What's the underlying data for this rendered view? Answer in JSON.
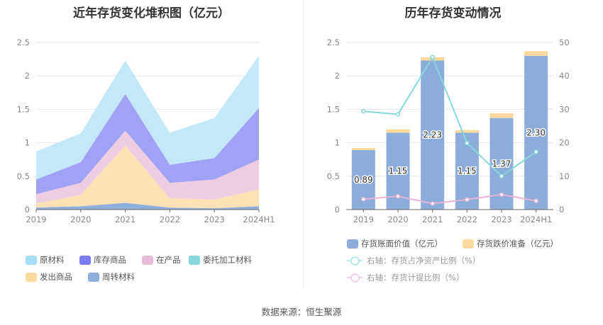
{
  "chart_data": [
    {
      "type": "area",
      "stacked": true,
      "title": "近年存货变化堆积图（亿元）",
      "categories": [
        "2019",
        "2020",
        "2021",
        "2022",
        "2023",
        "2024H1"
      ],
      "ylim": [
        0,
        2.5
      ],
      "yticks": [
        "0",
        "0.5",
        "1",
        "1.5",
        "2",
        "2.5"
      ],
      "grid": true,
      "legend_position": "bottom",
      "series": [
        {
          "name": "周转材料",
          "color": "#8eaedc",
          "values": [
            0.03,
            0.05,
            0.1,
            0.03,
            0.02,
            0.05
          ]
        },
        {
          "name": "发出商品",
          "color": "#fde1b4",
          "values": [
            0.06,
            0.17,
            0.86,
            0.14,
            0.13,
            0.25
          ]
        },
        {
          "name": "委托加工材料",
          "color": "#87d7dc",
          "values": [
            0,
            0,
            0,
            0,
            0,
            0
          ]
        },
        {
          "name": "在产品",
          "color": "#eecde3",
          "values": [
            0.14,
            0.18,
            0.22,
            0.23,
            0.3,
            0.45
          ]
        },
        {
          "name": "库存商品",
          "color": "#a0a2f6",
          "values": [
            0.22,
            0.31,
            0.55,
            0.27,
            0.32,
            0.77
          ]
        },
        {
          "name": "原材料",
          "color": "#c3e8fa",
          "values": [
            0.42,
            0.43,
            0.5,
            0.48,
            0.6,
            0.78
          ]
        }
      ],
      "legend": [
        {
          "name": "原材料",
          "color": "#a6def8"
        },
        {
          "name": "库存商品",
          "color": "#7b7cf2"
        },
        {
          "name": "在产品",
          "color": "#e8bcd8"
        },
        {
          "name": "委托加工材料",
          "color": "#87d7dc"
        },
        {
          "name": "发出商品",
          "color": "#fdd99b"
        },
        {
          "name": "周转材料",
          "color": "#8eaedc"
        }
      ]
    },
    {
      "type": "bar+line",
      "title": "历年存货变动情况",
      "categories": [
        "2019",
        "2020",
        "2021",
        "2022",
        "2023",
        "2024H1"
      ],
      "ylim": [
        0,
        2.5
      ],
      "yticks": [
        "0",
        "0.5",
        "1",
        "1.5",
        "2",
        "2.5"
      ],
      "y2lim": [
        0,
        50
      ],
      "y2ticks": [
        "0",
        "10",
        "20",
        "30",
        "40",
        "50"
      ],
      "grid": true,
      "legend_position": "bottom",
      "bars": [
        {
          "name": "存货账面价值（亿元）",
          "color": "#8cacda",
          "values": [
            0.89,
            1.15,
            2.23,
            1.15,
            1.37,
            2.3
          ],
          "labels": [
            "0.89",
            "1.15",
            "2.23",
            "1.15",
            "1.37",
            "2.30"
          ]
        },
        {
          "name": "存货跌价准备（亿元）",
          "color": "#fdd99b",
          "values": [
            0.03,
            0.05,
            0.05,
            0.04,
            0.07,
            0.07
          ]
        }
      ],
      "lines": [
        {
          "name": "右轴：存货占净资产比例（%）",
          "color": "#86d8da",
          "values": [
            29.4,
            28.5,
            45.6,
            19.9,
            10.0,
            17.3
          ]
        },
        {
          "name": "右轴：存货计提比例（%）",
          "color": "#e8b4d8",
          "values": [
            3.1,
            4.0,
            1.8,
            3.0,
            4.5,
            2.6
          ]
        }
      ]
    }
  ],
  "footer": "数据来源：恒生聚源"
}
